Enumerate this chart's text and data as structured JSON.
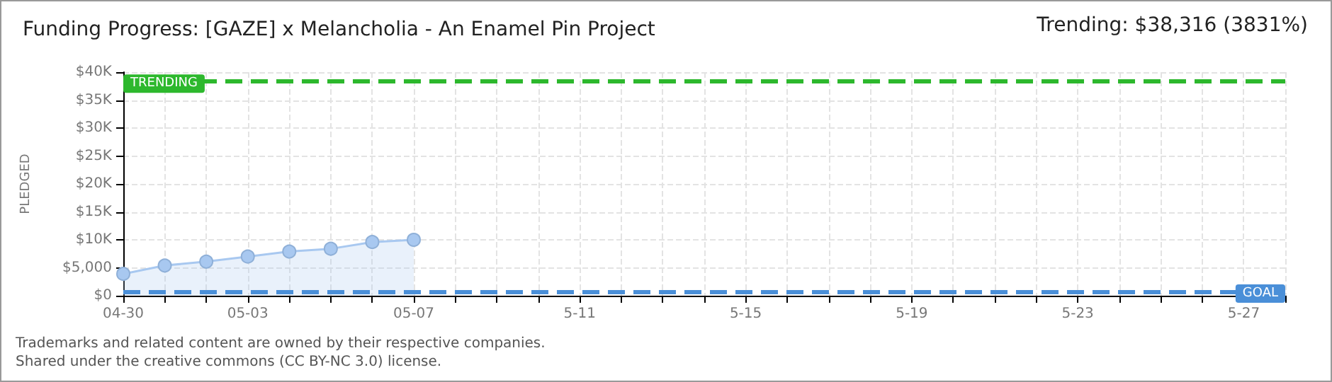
{
  "chart_data": {
    "type": "area",
    "title": "Funding Progress: [GAZE] x Melancholia - An Enamel Pin Project",
    "ylabel": "PLEDGED",
    "categories": [
      "04-30",
      null,
      null,
      "05-03",
      null,
      null,
      null,
      "05-07",
      null,
      null,
      null,
      "5-11",
      null,
      null,
      null,
      "5-15",
      null,
      null,
      null,
      "5-19",
      null,
      null,
      null,
      "5-23",
      null,
      null,
      null,
      "5-27",
      null
    ],
    "series": [
      {
        "color": "#a8c8f0",
        "values": [
          3900,
          5400,
          6100,
          7000,
          7900,
          8400,
          9600,
          10000,
          null,
          null,
          null,
          null,
          null,
          null,
          null,
          null,
          null,
          null,
          null,
          null,
          null,
          null,
          null,
          null,
          null,
          null,
          null,
          null,
          null
        ]
      }
    ],
    "ylim": [
      0,
      40000
    ],
    "yticks": [
      {
        "value": 0,
        "label": "$0"
      },
      {
        "value": 5000,
        "label": "$5,000"
      },
      {
        "value": 10000,
        "label": "$10K"
      },
      {
        "value": 15000,
        "label": "$15K"
      },
      {
        "value": 20000,
        "label": "$20K"
      },
      {
        "value": 25000,
        "label": "$25K"
      },
      {
        "value": 30000,
        "label": "$30K"
      },
      {
        "value": 35000,
        "label": "$35K"
      },
      {
        "value": 40000,
        "label": "$40K"
      }
    ],
    "ref_lines": [
      {
        "axis": "y",
        "value": 38316,
        "label": "TRENDING",
        "color": "#2db82d",
        "line_style": "dashed"
      },
      {
        "axis": "y",
        "value": 750,
        "label": "GOAL",
        "color": "#4a8fd8",
        "line_style": "dashed"
      }
    ],
    "annotations": [
      "Trending: $38,316 (3831%)",
      "Trademarks and related content are owned by their respective companies.",
      "Shared under the creative commons (CC BY-NC 3.0) license."
    ],
    "grid": true,
    "marker": "circle"
  }
}
